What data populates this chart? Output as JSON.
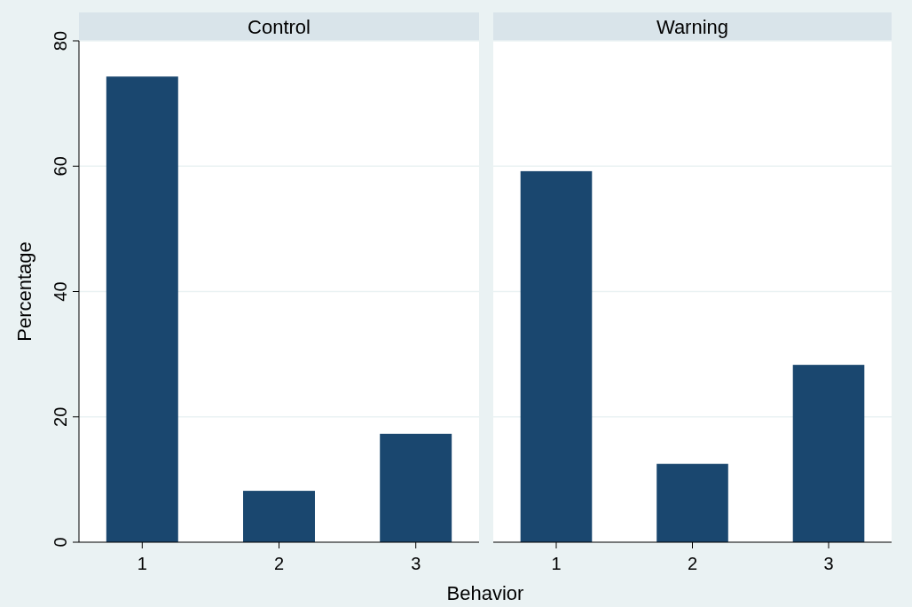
{
  "chart_data": [
    {
      "type": "bar",
      "title": "Control",
      "ylabel": "Percentage",
      "xlabel": "Behavior",
      "categories": [
        "1",
        "2",
        "3"
      ],
      "values": [
        74.3,
        8.2,
        17.3
      ],
      "color": "#1a476f",
      "ylim": [
        0,
        80
      ],
      "yticks": [
        0,
        20,
        40,
        60,
        80
      ],
      "grid": "y"
    },
    {
      "type": "bar",
      "title": "Warning",
      "categories": [
        "1",
        "2",
        "3"
      ],
      "values": [
        59.2,
        12.5,
        28.3
      ],
      "color": "#1a476f",
      "ylim": [
        0,
        80
      ],
      "yticks": [
        0,
        20,
        40,
        60,
        80
      ],
      "grid": "y",
      "tick_labels": "x"
    }
  ]
}
